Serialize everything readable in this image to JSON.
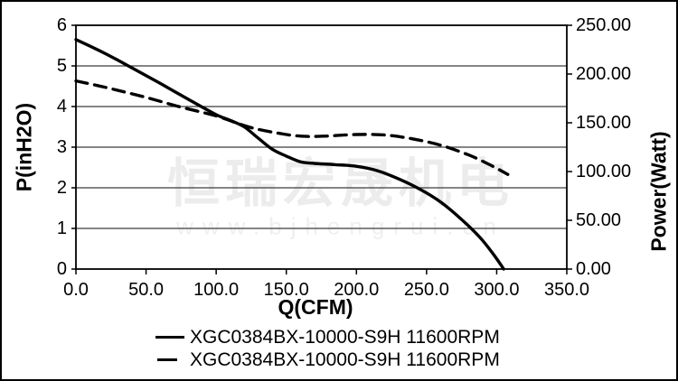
{
  "watermark": {
    "line1": "恒瑞宏晟机电",
    "line2": "www.bjhengrui.cn"
  },
  "axes": {
    "x_title": "Q(CFM)",
    "y_left_title": "P(inH2O)",
    "y_right_title": "Power(Watt)",
    "x_tick_labels": [
      "0.0",
      "50.0",
      "100.0",
      "150.0",
      "200.0",
      "250.0",
      "300.0",
      "350.0"
    ],
    "y_left_tick_labels": [
      "6",
      "5",
      "4",
      "3",
      "2",
      "1",
      "0"
    ],
    "y_right_tick_labels": [
      "250.00",
      "200.00",
      "150.00",
      "100.00",
      "50.00",
      "0.00"
    ]
  },
  "legend": {
    "items": [
      {
        "label": "XGC0384BX-10000-S9H 11600RPM",
        "marker": "solid-line"
      },
      {
        "label": "XGC0384BX-10000-S9H 11600RPM",
        "marker": "dashed-line"
      }
    ]
  },
  "colors": {
    "line": "#000000",
    "grid": "#3c3c3c",
    "frame": "#000000",
    "watermark": "#ececec",
    "background": "#ffffff"
  },
  "chart_data": {
    "type": "line",
    "title": "",
    "xlabel": "Q(CFM)",
    "ylabel_left": "P(inH2O)",
    "ylabel_right": "Power(Watt)",
    "xlim": [
      0,
      350
    ],
    "ylim_left": [
      0,
      6
    ],
    "ylim_right": [
      0,
      250
    ],
    "x_tick_step": 50,
    "y_left_tick_step": 1,
    "y_right_tick_step": 50,
    "grid": "horizontal gridlines at each left-axis unit",
    "legend_position": "bottom",
    "series": [
      {
        "name": "XGC0384BX-10000-S9H 11600RPM",
        "axis": "left",
        "unit": "inH2O",
        "line_style": "solid",
        "x": [
          0,
          20,
          40,
          60,
          80,
          100,
          110,
          120,
          130,
          140,
          150,
          160,
          170,
          185,
          200,
          215,
          230,
          245,
          260,
          275,
          288,
          298,
          305
        ],
        "y": [
          5.65,
          5.32,
          4.95,
          4.57,
          4.18,
          3.8,
          3.66,
          3.5,
          3.22,
          2.95,
          2.78,
          2.64,
          2.6,
          2.57,
          2.53,
          2.42,
          2.22,
          1.97,
          1.65,
          1.22,
          0.78,
          0.35,
          0
        ]
      },
      {
        "name": "XGC0384BX-10000-S9H 11600RPM",
        "axis": "right",
        "unit": "Watt",
        "line_style": "dashed",
        "x": [
          0,
          25,
          50,
          75,
          100,
          125,
          150,
          165,
          180,
          200,
          220,
          240,
          260,
          280,
          295,
          308
        ],
        "y": [
          193,
          185,
          176,
          166,
          157,
          145,
          138,
          136,
          136.5,
          138,
          137.5,
          133.5,
          127,
          117,
          107,
          97
        ]
      }
    ]
  }
}
